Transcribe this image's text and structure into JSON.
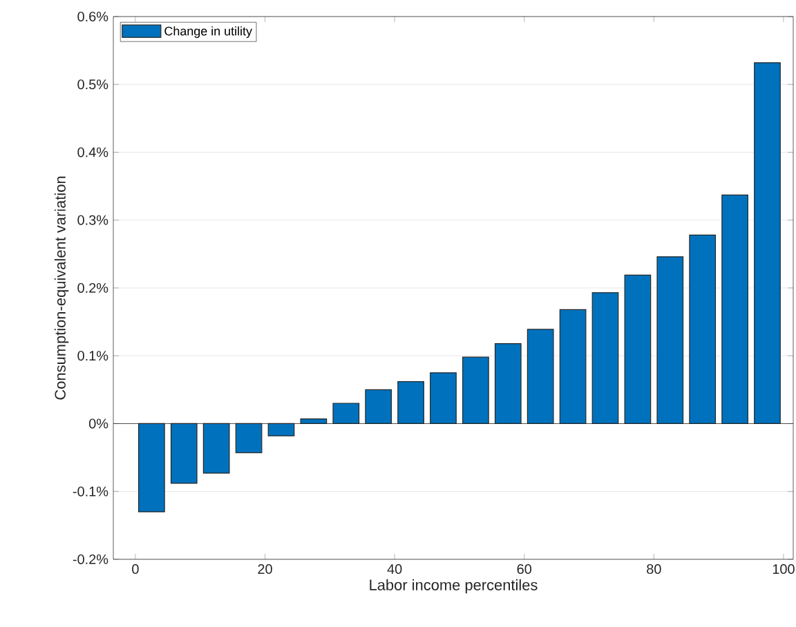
{
  "chart_data": {
    "type": "bar",
    "xlabel": "Labor income percentiles",
    "ylabel": "Consumption-equivalent variation",
    "x": [
      2.5,
      7.5,
      12.5,
      17.5,
      22.5,
      27.5,
      32.5,
      37.5,
      42.5,
      47.5,
      52.5,
      57.5,
      62.5,
      67.5,
      72.5,
      77.5,
      82.5,
      87.5,
      92.5,
      97.5
    ],
    "series": [
      {
        "name": "Change in utility",
        "color": "#0072bd",
        "values": [
          -0.13,
          -0.088,
          -0.073,
          -0.043,
          -0.018,
          0.007,
          0.03,
          0.05,
          0.062,
          0.075,
          0.098,
          0.118,
          0.139,
          0.168,
          0.193,
          0.219,
          0.246,
          0.278,
          0.337,
          0.532
        ]
      }
    ],
    "xlim": [
      -3.4,
      101.5
    ],
    "ylim": [
      -0.2,
      0.6
    ],
    "xticks": [
      0,
      20,
      40,
      60,
      80,
      100
    ],
    "yticks": [
      {
        "value": -0.2,
        "label": "-0.2%"
      },
      {
        "value": -0.1,
        "label": "-0.1%"
      },
      {
        "value": 0,
        "label": "0%"
      },
      {
        "value": 0.1,
        "label": "0.1%"
      },
      {
        "value": 0.2,
        "label": "0.2%"
      },
      {
        "value": 0.3,
        "label": "0.3%"
      },
      {
        "value": 0.4,
        "label": "0.4%"
      },
      {
        "value": 0.5,
        "label": "0.5%"
      },
      {
        "value": 0.6,
        "label": "0.6%"
      }
    ],
    "grid": "y",
    "legend": "top left"
  }
}
